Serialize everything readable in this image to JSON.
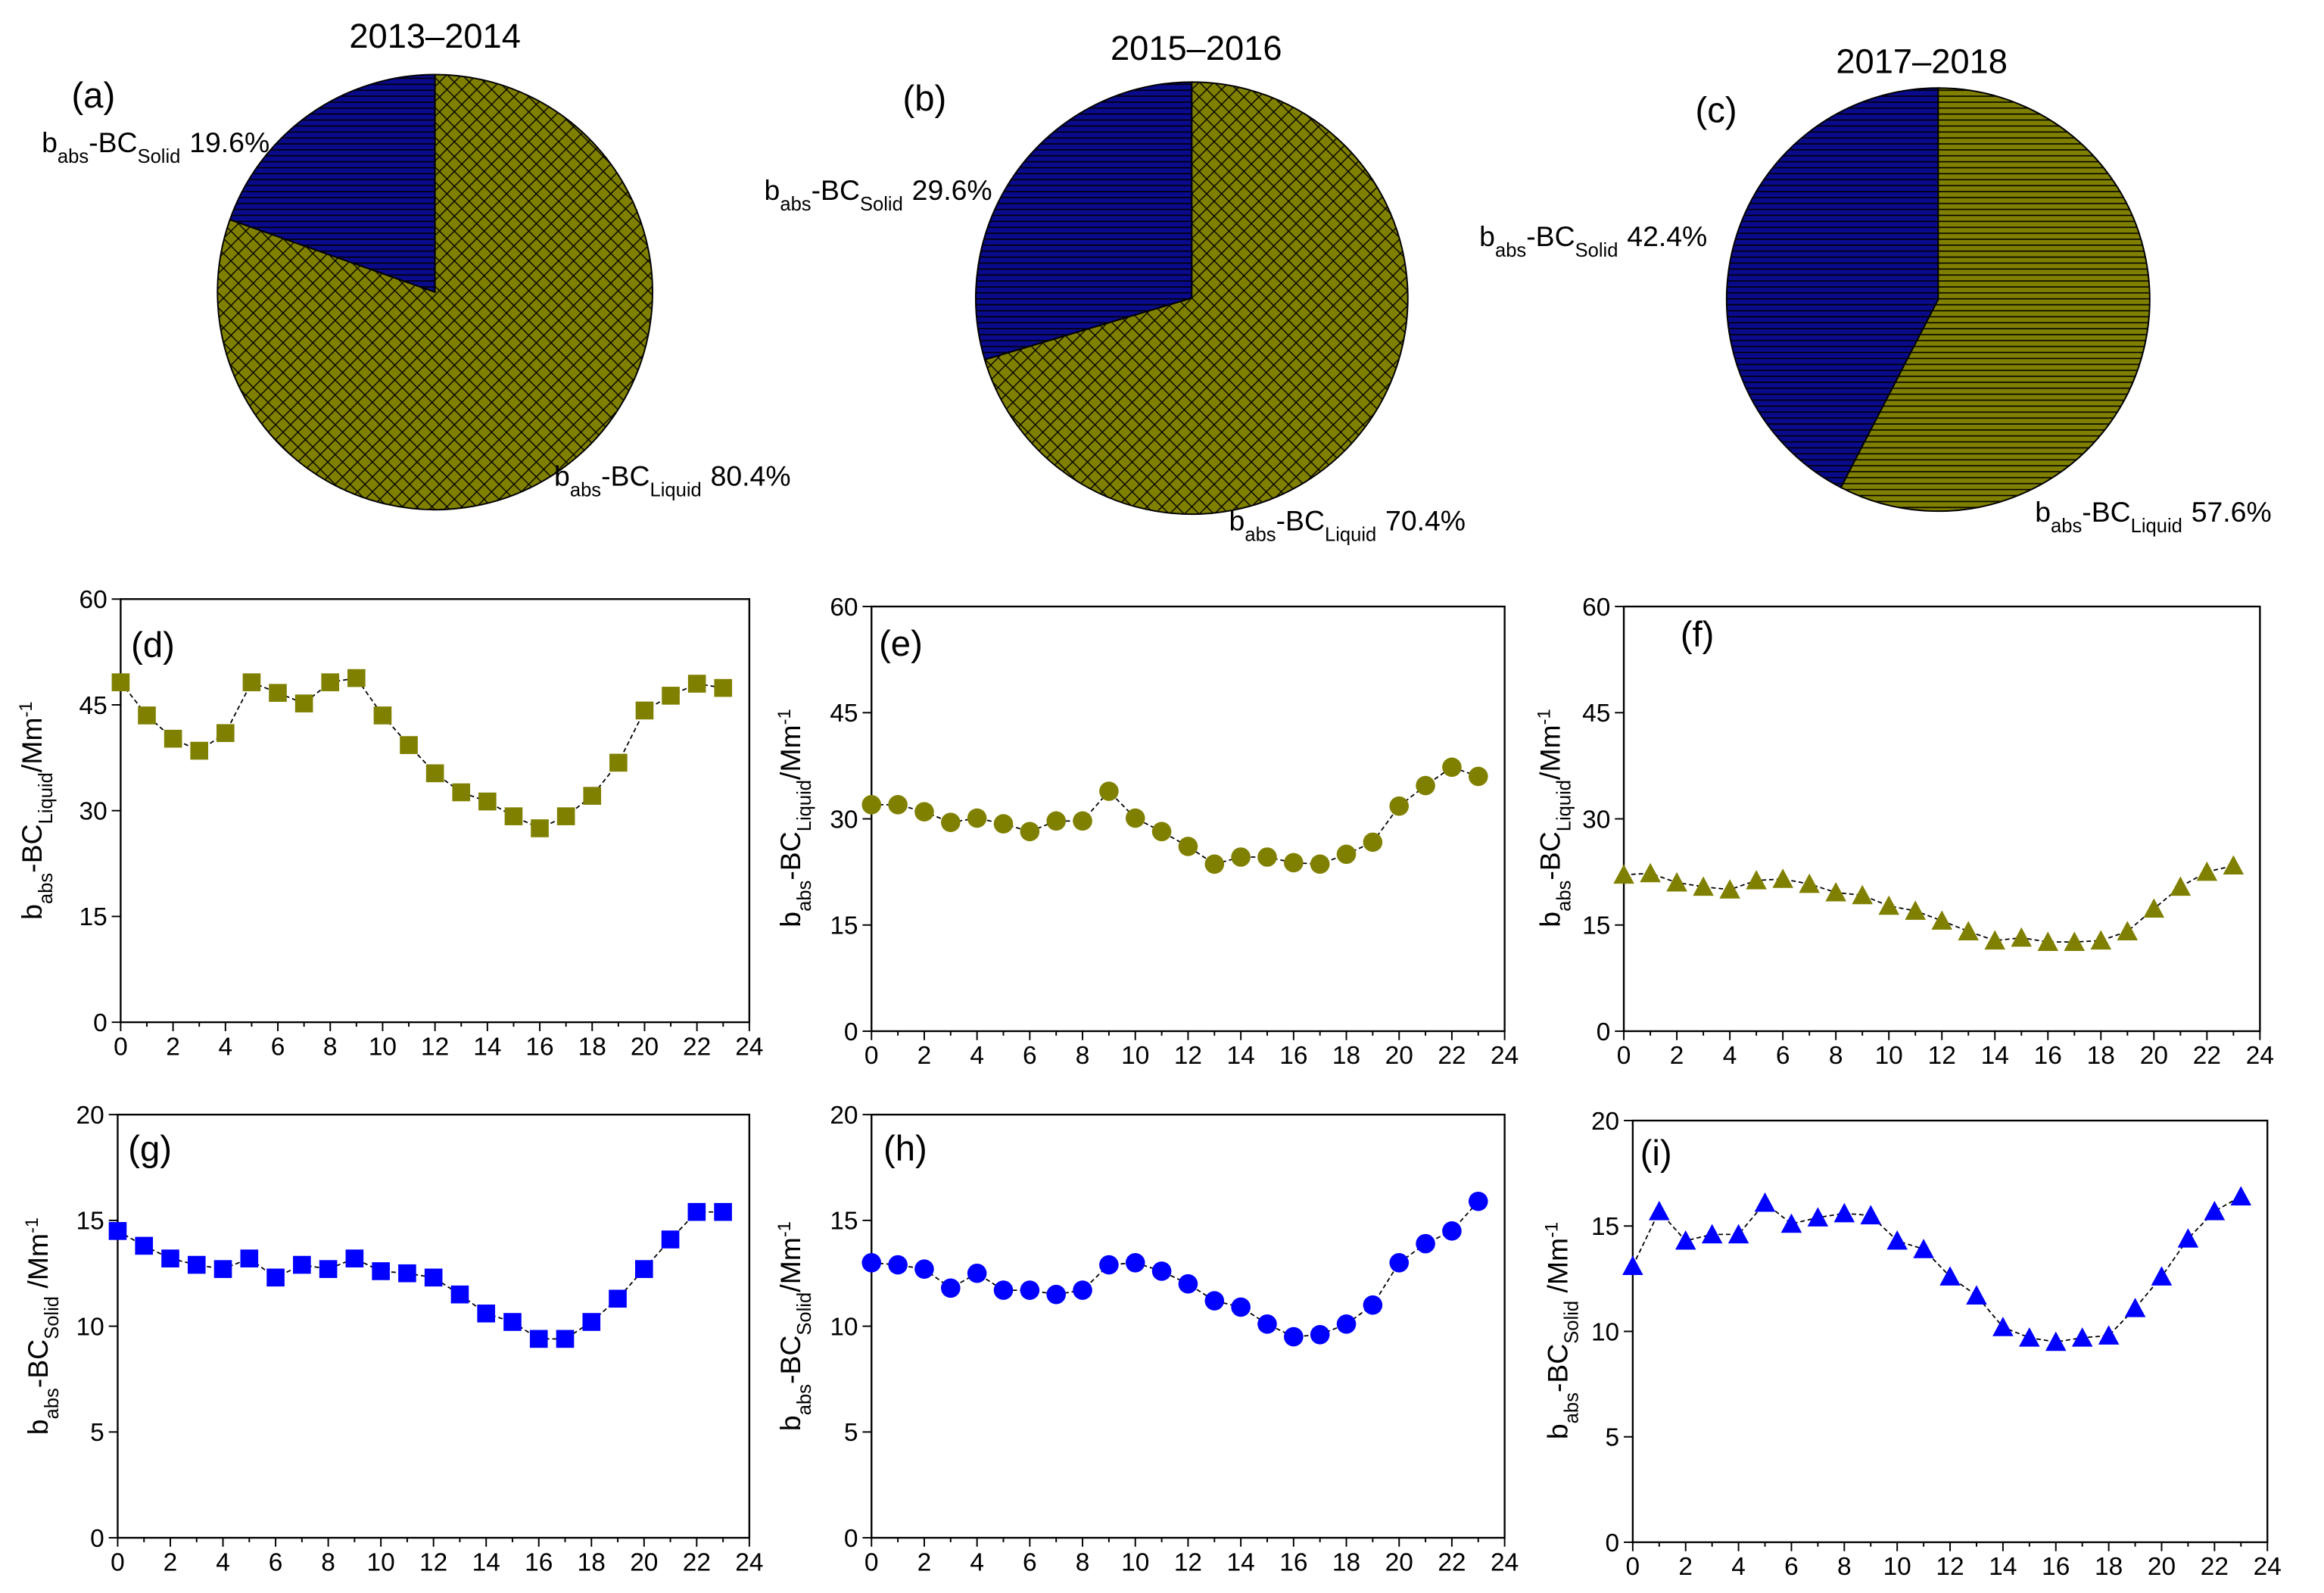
{
  "colors": {
    "liquid_pie": "#808000",
    "solid_pie": "#0a0a8c",
    "liquid_marker": "#808000",
    "solid_marker": "#0000ff"
  },
  "chart_data": [
    {
      "panel": "(a)",
      "type": "pie",
      "title": "2013–2014",
      "slices": [
        {
          "name": "babs-BCSolid",
          "prefix": "b",
          "sub1": "abs",
          "mid": "-BC",
          "sub2": "Solid",
          "value": 19.6,
          "label": "19.6%"
        },
        {
          "name": "babs-BCLiquid",
          "prefix": "b",
          "sub1": "abs",
          "mid": "-BC",
          "sub2": "Liquid",
          "value": 80.4,
          "label": "80.4%"
        }
      ]
    },
    {
      "panel": "(b)",
      "type": "pie",
      "title": "2015–2016",
      "slices": [
        {
          "name": "babs-BCSolid",
          "prefix": "b",
          "sub1": "abs",
          "mid": "-BC",
          "sub2": "Solid",
          "value": 29.6,
          "label": "29.6%"
        },
        {
          "name": "babs-BCLiquid",
          "prefix": "b",
          "sub1": "abs",
          "mid": "-BC",
          "sub2": "Liquid",
          "value": 70.4,
          "label": "70.4%"
        }
      ]
    },
    {
      "panel": "(c)",
      "type": "pie",
      "title": "2017–2018",
      "slices": [
        {
          "name": "babs-BCSolid",
          "prefix": "b",
          "sub1": "abs",
          "mid": "-BC",
          "sub2": "Solid",
          "value": 42.4,
          "label": "42.4%"
        },
        {
          "name": "babs-BCLiquid",
          "prefix": "b",
          "sub1": "abs",
          "mid": "-BC",
          "sub2": "Liquid",
          "value": 57.6,
          "label": "57.6%"
        }
      ]
    },
    {
      "panel": "(d)",
      "type": "line",
      "marker": "square",
      "series_kind": "liquid",
      "ylabel": {
        "a": "b",
        "b": "abs",
        "c": "-BC",
        "d": "Liquid",
        "e": "/Mm",
        "f": "-1"
      },
      "xlim": [
        0,
        24
      ],
      "ylim": [
        0,
        60
      ],
      "xticks": [
        0,
        2,
        4,
        6,
        8,
        10,
        12,
        14,
        16,
        18,
        20,
        22,
        24
      ],
      "yticks": [
        0,
        15,
        30,
        45,
        60
      ],
      "x": [
        0,
        1,
        2,
        3,
        4,
        5,
        6,
        7,
        8,
        9,
        10,
        11,
        12,
        13,
        14,
        15,
        16,
        17,
        18,
        19,
        20,
        21,
        22,
        23
      ],
      "y": [
        48.2,
        43.5,
        40.2,
        38.5,
        41,
        48.2,
        46.7,
        45.2,
        48.2,
        48.8,
        43.5,
        39.3,
        35.3,
        32.6,
        31.3,
        29.2,
        27.5,
        29.2,
        32.1,
        36.8,
        44.2,
        46.3,
        48,
        47.4
      ]
    },
    {
      "panel": "(e)",
      "type": "line",
      "marker": "circle",
      "series_kind": "liquid",
      "ylabel": {
        "a": "b",
        "b": "abs",
        "c": "-BC",
        "d": "Liquid",
        "e": "/Mm",
        "f": "-1"
      },
      "xlim": [
        0,
        24
      ],
      "ylim": [
        0,
        60
      ],
      "xticks": [
        0,
        2,
        4,
        6,
        8,
        10,
        12,
        14,
        16,
        18,
        20,
        22,
        24
      ],
      "yticks": [
        0,
        15,
        30,
        45,
        60
      ],
      "x": [
        0,
        1,
        2,
        3,
        4,
        5,
        6,
        7,
        8,
        9,
        10,
        11,
        12,
        13,
        14,
        15,
        16,
        17,
        18,
        19,
        20,
        21,
        22,
        23
      ],
      "y": [
        32,
        32,
        31,
        29.5,
        30.1,
        29.3,
        28.2,
        29.7,
        29.7,
        33.9,
        30.1,
        28.2,
        26.1,
        23.6,
        24.6,
        24.6,
        23.8,
        23.6,
        25,
        26.7,
        31.8,
        34.7,
        37.3,
        36
      ]
    },
    {
      "panel": "(f)",
      "type": "line",
      "marker": "triangle",
      "series_kind": "liquid",
      "ylabel": {
        "a": "b",
        "b": "abs",
        "c": "-BC",
        "d": "Liquid",
        "e": "/Mm",
        "f": "-1"
      },
      "xlim": [
        0,
        24
      ],
      "ylim": [
        0,
        60
      ],
      "xticks": [
        0,
        2,
        4,
        6,
        8,
        10,
        12,
        14,
        16,
        18,
        20,
        22,
        24
      ],
      "yticks": [
        0,
        15,
        30,
        45,
        60
      ],
      "x": [
        0,
        1,
        2,
        3,
        4,
        5,
        6,
        7,
        8,
        9,
        10,
        11,
        12,
        13,
        14,
        15,
        16,
        17,
        18,
        19,
        20,
        21,
        22,
        23
      ],
      "y": [
        22.1,
        22.3,
        21,
        20.4,
        20,
        21.3,
        21.5,
        20.8,
        19.6,
        19.2,
        17.7,
        17,
        15.6,
        14.1,
        12.8,
        13.2,
        12.6,
        12.6,
        12.8,
        14.1,
        17.3,
        20.4,
        22.5,
        23.4
      ]
    },
    {
      "panel": "(g)",
      "type": "line",
      "marker": "square",
      "series_kind": "solid",
      "ylabel": {
        "a": "b",
        "b": "abs",
        "c": "-BC",
        "d": "Solid",
        "e": " /Mm",
        "f": "-1"
      },
      "xlim": [
        0,
        24
      ],
      "ylim": [
        0,
        20
      ],
      "xticks": [
        0,
        2,
        4,
        6,
        8,
        10,
        12,
        14,
        16,
        18,
        20,
        22,
        24
      ],
      "yticks": [
        0,
        5,
        10,
        15,
        20
      ],
      "x": [
        0,
        1,
        2,
        3,
        4,
        5,
        6,
        7,
        8,
        9,
        10,
        11,
        12,
        13,
        14,
        15,
        16,
        17,
        18,
        19,
        20,
        21,
        22,
        23
      ],
      "y": [
        14.5,
        13.8,
        13.2,
        12.9,
        12.7,
        13.2,
        12.3,
        12.9,
        12.7,
        13.2,
        12.6,
        12.5,
        12.3,
        11.5,
        10.6,
        10.2,
        9.4,
        9.4,
        10.2,
        11.3,
        12.7,
        14.1,
        15.4,
        15.4
      ]
    },
    {
      "panel": "(h)",
      "type": "line",
      "marker": "circle",
      "series_kind": "solid",
      "ylabel": {
        "a": "b",
        "b": "abs",
        "c": "-BC",
        "d": "Solid",
        "e": "/Mm",
        "f": "-1"
      },
      "xlim": [
        0,
        24
      ],
      "ylim": [
        0,
        20
      ],
      "xticks": [
        0,
        2,
        4,
        6,
        8,
        10,
        12,
        14,
        16,
        18,
        20,
        22,
        24
      ],
      "yticks": [
        0,
        5,
        10,
        15,
        20
      ],
      "x": [
        0,
        1,
        2,
        3,
        4,
        5,
        6,
        7,
        8,
        9,
        10,
        11,
        12,
        13,
        14,
        15,
        16,
        17,
        18,
        19,
        20,
        21,
        22,
        23
      ],
      "y": [
        13,
        12.9,
        12.7,
        11.8,
        12.5,
        11.7,
        11.7,
        11.5,
        11.7,
        12.9,
        13,
        12.6,
        12,
        11.2,
        10.9,
        10.1,
        9.5,
        9.6,
        10.1,
        11,
        13,
        13.9,
        14.5,
        15.9
      ]
    },
    {
      "panel": "(i)",
      "type": "line",
      "marker": "triangle",
      "series_kind": "solid",
      "ylabel": {
        "a": "b",
        "b": "abs",
        "c": "-BC",
        "d": "Solid",
        "e": " /Mm",
        "f": "-1"
      },
      "xlim": [
        0,
        24
      ],
      "ylim": [
        0,
        20
      ],
      "xticks": [
        0,
        2,
        4,
        6,
        8,
        10,
        12,
        14,
        16,
        18,
        20,
        22,
        24
      ],
      "yticks": [
        0,
        5,
        10,
        15,
        20
      ],
      "x": [
        0,
        1,
        2,
        3,
        4,
        5,
        6,
        7,
        8,
        9,
        10,
        11,
        12,
        13,
        14,
        15,
        16,
        17,
        18,
        19,
        20,
        21,
        22,
        23
      ],
      "y": [
        13.1,
        15.7,
        14.3,
        14.6,
        14.6,
        16.1,
        15.1,
        15.4,
        15.6,
        15.5,
        14.3,
        13.9,
        12.6,
        11.7,
        10.2,
        9.7,
        9.5,
        9.7,
        9.8,
        11.1,
        12.6,
        14.4,
        15.7,
        16.4
      ]
    }
  ]
}
